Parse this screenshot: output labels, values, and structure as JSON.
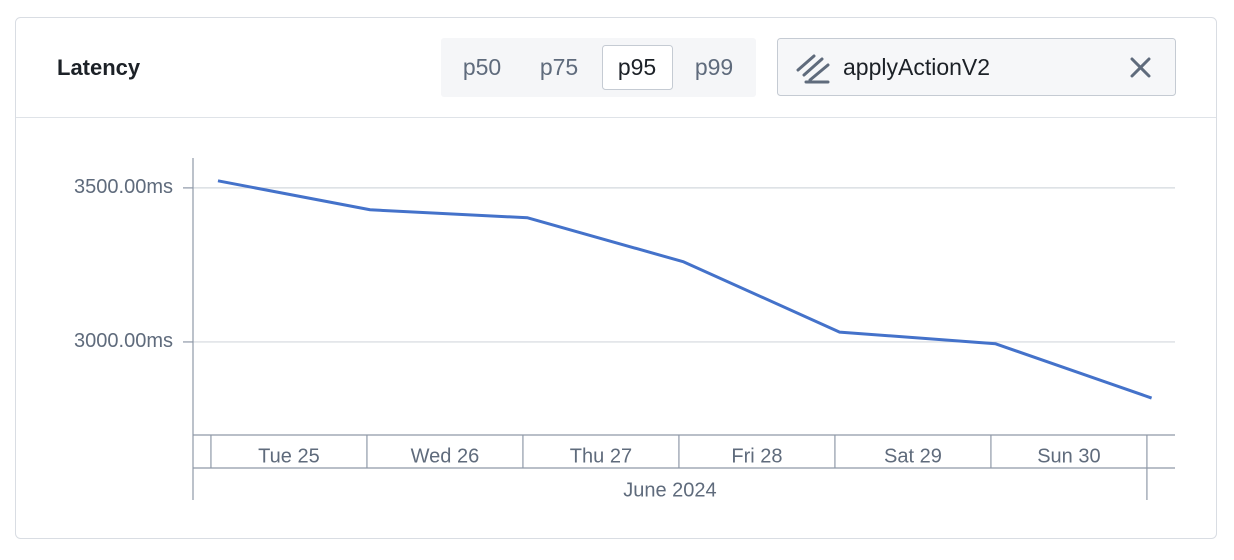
{
  "header": {
    "title": "Latency",
    "percentiles": [
      "p50",
      "p75",
      "p95",
      "p99"
    ],
    "selected": 2,
    "filter": "applyActionV2"
  },
  "chart_data": {
    "type": "line",
    "x": [
      25.045,
      26.02,
      27.03,
      28.03,
      29.03,
      30.03,
      31.03
    ],
    "series": [
      {
        "color": "#4472ca",
        "values": [
          3523,
          3429,
          3403,
          3260,
          3032,
          2994,
          2818
        ]
      }
    ],
    "xlim": [
      24.885,
      31.18
    ],
    "xticks": [
      25,
      26,
      27,
      28,
      29,
      30,
      31
    ],
    "categories": [
      "Tue 25",
      "Wed 26",
      "Thu 27",
      "Fri 28",
      "Sat 29",
      "Sun 30"
    ],
    "x_group_label": "June 2024",
    "ylim": [
      2698,
      3597
    ],
    "yticks": [
      {
        "value": 3000,
        "label": "3000.00ms"
      },
      {
        "value": 3500,
        "label": "3500.00ms"
      }
    ],
    "grid": true
  }
}
